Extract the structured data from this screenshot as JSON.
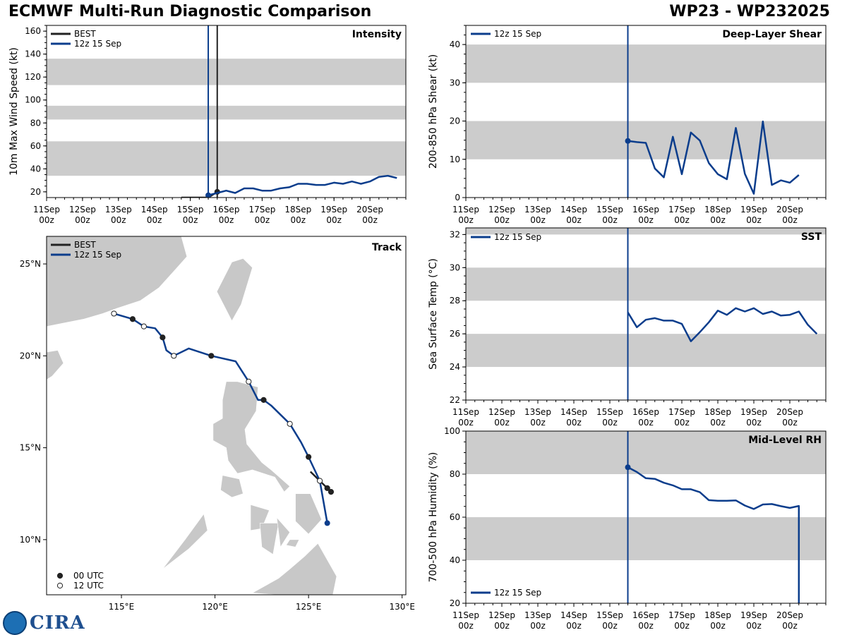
{
  "header": {
    "title": "ECMWF Multi-Run Diagnostic Comparison",
    "storm_id": "WP23 - WP232025"
  },
  "colors": {
    "best": "#222222",
    "run": "#0b3d8c",
    "band": "#cccccc",
    "land": "#c8c8c8",
    "frame": "#000000"
  },
  "logo": {
    "text": "CIRA"
  },
  "time_axis": {
    "range": [
      0,
      10
    ],
    "ticks": [
      {
        "t": 0,
        "line1": "11Sep",
        "line2": "00z"
      },
      {
        "t": 1,
        "line1": "12Sep",
        "line2": "00z"
      },
      {
        "t": 2,
        "line1": "13Sep",
        "line2": "00z"
      },
      {
        "t": 3,
        "line1": "14Sep",
        "line2": "00z"
      },
      {
        "t": 4,
        "line1": "15Sep",
        "line2": "00z"
      },
      {
        "t": 5,
        "line1": "16Sep",
        "line2": "00z"
      },
      {
        "t": 6,
        "line1": "17Sep",
        "line2": "00z"
      },
      {
        "t": 7,
        "line1": "18Sep",
        "line2": "00z"
      },
      {
        "t": 8,
        "line1": "19Sep",
        "line2": "00z"
      },
      {
        "t": 9,
        "line1": "20Sep",
        "line2": "00z"
      }
    ]
  },
  "chart_data": [
    {
      "id": "intensity",
      "type": "line",
      "title": "Intensity",
      "xlabel": "",
      "ylabel": "10m Max Wind Speed (kt)",
      "ylim": [
        15,
        165
      ],
      "yticks": [
        20,
        40,
        60,
        80,
        100,
        120,
        140,
        160
      ],
      "bands": [
        [
          34,
          64
        ],
        [
          83,
          95
        ],
        [
          113,
          136
        ]
      ],
      "legend": [
        {
          "name": "BEST",
          "key": "best"
        },
        {
          "name": "12z 15 Sep",
          "key": "run"
        }
      ],
      "vlines": [
        {
          "t": 4.5,
          "key": "run"
        },
        {
          "t": 4.75,
          "key": "best"
        }
      ],
      "series": [
        {
          "name": "BEST",
          "key": "best",
          "marker_last": true,
          "points": [
            [
              3.75,
              15
            ],
            [
              4.0,
              15
            ],
            [
              4.25,
              15
            ],
            [
              4.5,
              15
            ],
            [
              4.75,
              20
            ]
          ]
        },
        {
          "name": "12z 15 Sep",
          "key": "run",
          "marker_first": true,
          "points": [
            [
              4.5,
              17
            ],
            [
              4.75,
              19
            ],
            [
              5.0,
              21
            ],
            [
              5.25,
              19
            ],
            [
              5.5,
              23
            ],
            [
              5.75,
              23
            ],
            [
              6.0,
              21
            ],
            [
              6.25,
              21
            ],
            [
              6.5,
              23
            ],
            [
              6.75,
              24
            ],
            [
              7.0,
              27
            ],
            [
              7.25,
              27
            ],
            [
              7.5,
              26
            ],
            [
              7.75,
              26
            ],
            [
              8.0,
              28
            ],
            [
              8.25,
              27
            ],
            [
              8.5,
              29
            ],
            [
              8.75,
              27
            ],
            [
              9.0,
              29
            ],
            [
              9.25,
              33
            ],
            [
              9.5,
              34
            ],
            [
              9.75,
              32
            ]
          ]
        }
      ]
    },
    {
      "id": "shear",
      "type": "line",
      "title": "Deep-Layer Shear",
      "xlabel": "",
      "ylabel": "200-850 hPa Shear (kt)",
      "ylim": [
        0,
        45
      ],
      "yticks": [
        0,
        10,
        20,
        30,
        40
      ],
      "bands": [
        [
          10,
          20
        ],
        [
          30,
          40
        ]
      ],
      "legend": [
        {
          "name": "12z 15 Sep",
          "key": "run"
        }
      ],
      "vlines": [
        {
          "t": 4.5,
          "key": "run"
        }
      ],
      "series": [
        {
          "name": "12z 15 Sep",
          "key": "run",
          "marker_first": true,
          "points": [
            [
              4.5,
              14.8
            ],
            [
              4.75,
              14.5
            ],
            [
              5.0,
              14.3
            ],
            [
              5.25,
              7.6
            ],
            [
              5.5,
              5.3
            ],
            [
              5.75,
              15.9
            ],
            [
              6.0,
              6.1
            ],
            [
              6.25,
              17.0
            ],
            [
              6.5,
              14.9
            ],
            [
              6.75,
              9.0
            ],
            [
              7.0,
              6.1
            ],
            [
              7.25,
              4.8
            ],
            [
              7.5,
              18.2
            ],
            [
              7.75,
              6.2
            ],
            [
              8.0,
              1.0
            ],
            [
              8.25,
              19.9
            ],
            [
              8.5,
              3.3
            ],
            [
              8.75,
              4.5
            ],
            [
              9.0,
              3.9
            ],
            [
              9.25,
              5.9
            ]
          ]
        }
      ]
    },
    {
      "id": "sst",
      "type": "line",
      "title": "SST",
      "xlabel": "",
      "ylabel": "Sea Surface Temp (°C)",
      "ylim": [
        22,
        32.4
      ],
      "yticks": [
        22,
        24,
        26,
        28,
        30,
        32
      ],
      "bands": [
        [
          24,
          26
        ],
        [
          28,
          30
        ],
        [
          32,
          32.4
        ]
      ],
      "legend": [
        {
          "name": "12z 15 Sep",
          "key": "run"
        }
      ],
      "vlines": [
        {
          "t": 4.5,
          "key": "run"
        }
      ],
      "series": [
        {
          "name": "12z 15 Sep",
          "key": "run",
          "points": [
            [
              4.5,
              27.3
            ],
            [
              4.75,
              26.4
            ],
            [
              5.0,
              26.85
            ],
            [
              5.25,
              26.95
            ],
            [
              5.5,
              26.8
            ],
            [
              5.75,
              26.8
            ],
            [
              6.0,
              26.6
            ],
            [
              6.25,
              25.55
            ],
            [
              6.5,
              26.1
            ],
            [
              6.75,
              26.7
            ],
            [
              7.0,
              27.4
            ],
            [
              7.25,
              27.15
            ],
            [
              7.5,
              27.55
            ],
            [
              7.75,
              27.35
            ],
            [
              8.0,
              27.55
            ],
            [
              8.25,
              27.2
            ],
            [
              8.5,
              27.35
            ],
            [
              8.75,
              27.1
            ],
            [
              9.0,
              27.15
            ],
            [
              9.25,
              27.35
            ],
            [
              9.5,
              26.55
            ],
            [
              9.75,
              26.0
            ]
          ]
        }
      ]
    },
    {
      "id": "rh",
      "type": "line",
      "title": "Mid-Level RH",
      "xlabel": "",
      "ylabel": "700-500 hPa Humidity (%)",
      "ylim": [
        20,
        100
      ],
      "yticks": [
        20,
        40,
        60,
        80,
        100
      ],
      "bands": [
        [
          40,
          60
        ],
        [
          80,
          100
        ]
      ],
      "legend": [
        {
          "name": "12z 15 Sep",
          "key": "run"
        }
      ],
      "vlines": [
        {
          "t": 4.5,
          "key": "run"
        }
      ],
      "series": [
        {
          "name": "12z 15 Sep",
          "key": "run",
          "marker_first": true,
          "points": [
            [
              4.5,
              83.2
            ],
            [
              4.75,
              81.0
            ],
            [
              5.0,
              78.1
            ],
            [
              5.25,
              77.8
            ],
            [
              5.5,
              76.0
            ],
            [
              5.75,
              74.8
            ],
            [
              6.0,
              73.0
            ],
            [
              6.25,
              73.0
            ],
            [
              6.5,
              71.6
            ],
            [
              6.75,
              67.9
            ],
            [
              7.0,
              67.6
            ],
            [
              7.25,
              67.6
            ],
            [
              7.5,
              67.8
            ],
            [
              7.75,
              65.4
            ],
            [
              8.0,
              63.8
            ],
            [
              8.25,
              65.9
            ],
            [
              8.5,
              66.1
            ],
            [
              8.75,
              65.1
            ],
            [
              9.0,
              64.3
            ],
            [
              9.25,
              65.2
            ],
            [
              9.25,
              20
            ]
          ]
        }
      ]
    },
    {
      "id": "track",
      "type": "scatter",
      "title": "Track",
      "xlabel": "",
      "ylabel": "",
      "xlim": [
        111,
        130.2
      ],
      "ylim": [
        7,
        26.5
      ],
      "xticks": [
        {
          "v": 115,
          "label": "115°E"
        },
        {
          "v": 120,
          "label": "120°E"
        },
        {
          "v": 125,
          "label": "125°E"
        },
        {
          "v": 130,
          "label": "130°E"
        }
      ],
      "yticks": [
        {
          "v": 10,
          "label": "10°N"
        },
        {
          "v": 15,
          "label": "15°N"
        },
        {
          "v": 20,
          "label": "20°N"
        },
        {
          "v": 25,
          "label": "25°N"
        }
      ],
      "legend": [
        {
          "name": "BEST",
          "key": "best"
        },
        {
          "name": "12z 15 Sep",
          "key": "run"
        }
      ],
      "marker_legend": [
        {
          "name": "00 UTC",
          "fill": "filled"
        },
        {
          "name": "12 UTC",
          "fill": "open"
        }
      ],
      "best": [
        [
          125.1,
          13.7
        ],
        [
          125.6,
          13.2
        ],
        [
          126.0,
          12.8
        ],
        [
          126.2,
          12.6
        ]
      ],
      "best_markers": [
        {
          "lon": 126.0,
          "lat": 12.8,
          "kind": "00"
        },
        {
          "lon": 126.2,
          "lat": 12.6,
          "kind": "00"
        }
      ],
      "run": [
        [
          126.0,
          10.9
        ],
        [
          125.6,
          13.2
        ],
        [
          125.0,
          14.5
        ],
        [
          124.6,
          15.3
        ],
        [
          124.0,
          16.3
        ],
        [
          123.0,
          17.3
        ],
        [
          122.6,
          17.6
        ],
        [
          122.3,
          17.6
        ],
        [
          121.8,
          18.6
        ],
        [
          121.1,
          19.7
        ],
        [
          119.8,
          20.0
        ],
        [
          118.6,
          20.4
        ],
        [
          117.8,
          20.0
        ],
        [
          117.4,
          20.3
        ],
        [
          117.2,
          21.0
        ],
        [
          116.8,
          21.5
        ],
        [
          116.2,
          21.6
        ],
        [
          115.6,
          22.0
        ],
        [
          114.6,
          22.3
        ]
      ],
      "run_start": {
        "lon": 126.0,
        "lat": 10.9
      },
      "run_markers": [
        {
          "lon": 125.6,
          "lat": 13.2,
          "kind": "12"
        },
        {
          "lon": 125.0,
          "lat": 14.5,
          "kind": "00"
        },
        {
          "lon": 124.0,
          "lat": 16.3,
          "kind": "12"
        },
        {
          "lon": 122.6,
          "lat": 17.6,
          "kind": "00"
        },
        {
          "lon": 121.8,
          "lat": 18.6,
          "kind": "12"
        },
        {
          "lon": 119.8,
          "lat": 20.0,
          "kind": "00"
        },
        {
          "lon": 117.8,
          "lat": 20.0,
          "kind": "12"
        },
        {
          "lon": 117.2,
          "lat": 21.0,
          "kind": "00"
        },
        {
          "lon": 116.2,
          "lat": 21.6,
          "kind": "12"
        },
        {
          "lon": 115.6,
          "lat": 22.0,
          "kind": "00"
        },
        {
          "lon": 114.6,
          "lat": 22.3,
          "kind": "12"
        }
      ],
      "land": [
        [
          [
            111,
            26.5
          ],
          [
            118.2,
            26.5
          ],
          [
            118.5,
            25.4
          ],
          [
            117.8,
            24.6
          ],
          [
            117,
            23.7
          ],
          [
            116,
            23.0
          ],
          [
            114.8,
            22.6
          ],
          [
            114.0,
            22.3
          ],
          [
            113.0,
            22.0
          ],
          [
            112.0,
            21.8
          ],
          [
            111,
            21.6
          ]
        ],
        [
          [
            111,
            20.2
          ],
          [
            111.6,
            20.3
          ],
          [
            111.9,
            19.6
          ],
          [
            111.3,
            18.9
          ],
          [
            111,
            18.7
          ]
        ],
        [
          [
            120.1,
            23.5
          ],
          [
            120.7,
            22.3
          ],
          [
            120.9,
            21.9
          ],
          [
            121.4,
            22.8
          ],
          [
            122.0,
            24.8
          ],
          [
            121.5,
            25.3
          ],
          [
            120.9,
            25.1
          ]
        ],
        [
          [
            120.6,
            18.6
          ],
          [
            121.2,
            18.6
          ],
          [
            122.3,
            18.3
          ],
          [
            122.2,
            17.0
          ],
          [
            121.6,
            16.0
          ],
          [
            121.7,
            15.2
          ],
          [
            122.5,
            14.2
          ],
          [
            123.0,
            13.8
          ],
          [
            124.0,
            12.9
          ],
          [
            123.7,
            12.6
          ],
          [
            123.2,
            13.4
          ],
          [
            122.0,
            13.8
          ],
          [
            121.2,
            13.6
          ],
          [
            120.7,
            14.3
          ],
          [
            120.6,
            15.0
          ],
          [
            119.9,
            15.4
          ],
          [
            119.9,
            16.3
          ],
          [
            120.4,
            16.6
          ],
          [
            120.4,
            17.6
          ]
        ],
        [
          [
            120.4,
            13.5
          ],
          [
            121.3,
            13.3
          ],
          [
            121.5,
            12.5
          ],
          [
            120.9,
            12.3
          ],
          [
            120.3,
            12.7
          ]
        ],
        [
          [
            124.3,
            12.5
          ],
          [
            125.1,
            12.5
          ],
          [
            125.7,
            11.1
          ],
          [
            125.0,
            10.3
          ],
          [
            124.3,
            11.0
          ]
        ],
        [
          [
            121.9,
            11.9
          ],
          [
            122.9,
            11.6
          ],
          [
            122.5,
            10.6
          ],
          [
            121.9,
            10.5
          ]
        ],
        [
          [
            122.4,
            10.9
          ],
          [
            123.4,
            10.9
          ],
          [
            123.1,
            9.2
          ],
          [
            122.5,
            9.6
          ]
        ],
        [
          [
            123.3,
            11.2
          ],
          [
            124.0,
            10.4
          ],
          [
            123.5,
            9.6
          ]
        ],
        [
          [
            124.0,
            10.0
          ],
          [
            124.5,
            10.0
          ],
          [
            124.3,
            9.6
          ],
          [
            123.8,
            9.7
          ]
        ],
        [
          [
            117.2,
            8.4
          ],
          [
            118.6,
            9.5
          ],
          [
            119.6,
            10.5
          ],
          [
            119.4,
            11.4
          ],
          [
            118.4,
            10.0
          ]
        ],
        [
          [
            125.5,
            9.8
          ],
          [
            126.5,
            8.0
          ],
          [
            126.3,
            7.0
          ],
          [
            125.2,
            7.0
          ],
          [
            123.3,
            7.0
          ],
          [
            122.0,
            7.1
          ],
          [
            123.4,
            7.9
          ],
          [
            124.0,
            8.4
          ],
          [
            124.8,
            9.1
          ]
        ],
        [
          [
            121.2,
            7.0
          ],
          [
            122.0,
            7.0
          ],
          [
            121.6,
            6.9
          ]
        ]
      ]
    }
  ]
}
